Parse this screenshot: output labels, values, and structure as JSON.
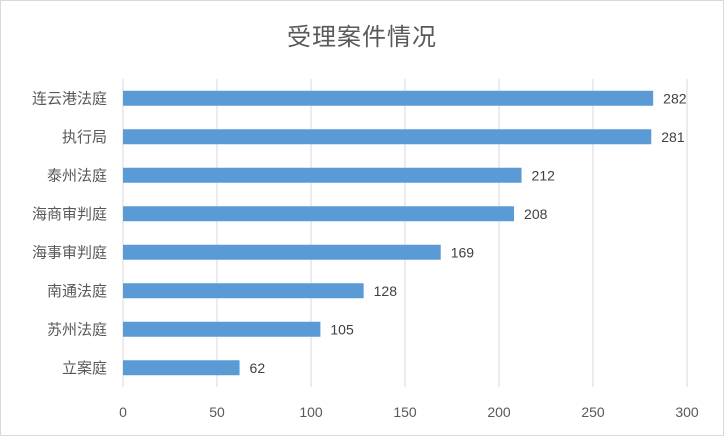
{
  "chart_data": {
    "type": "bar",
    "orientation": "horizontal",
    "title": "受理案件情况",
    "categories": [
      "连云港法庭",
      "执行局",
      "泰州法庭",
      "海商审判庭",
      "海事审判庭",
      "南通法庭",
      "苏州法庭",
      "立案庭"
    ],
    "series": [
      {
        "values": [
          282,
          281,
          212,
          208,
          169,
          128,
          105,
          62
        ]
      }
    ],
    "xlim": [
      0,
      300
    ],
    "xticks": [
      0,
      50,
      100,
      150,
      200,
      250,
      300
    ],
    "xlabel": "",
    "ylabel": "",
    "grid": true,
    "data_labels": true,
    "legend": "none",
    "colors": {
      "bar": "#5b9bd5",
      "grid": "#d9d9d9",
      "text": "#595959"
    }
  }
}
